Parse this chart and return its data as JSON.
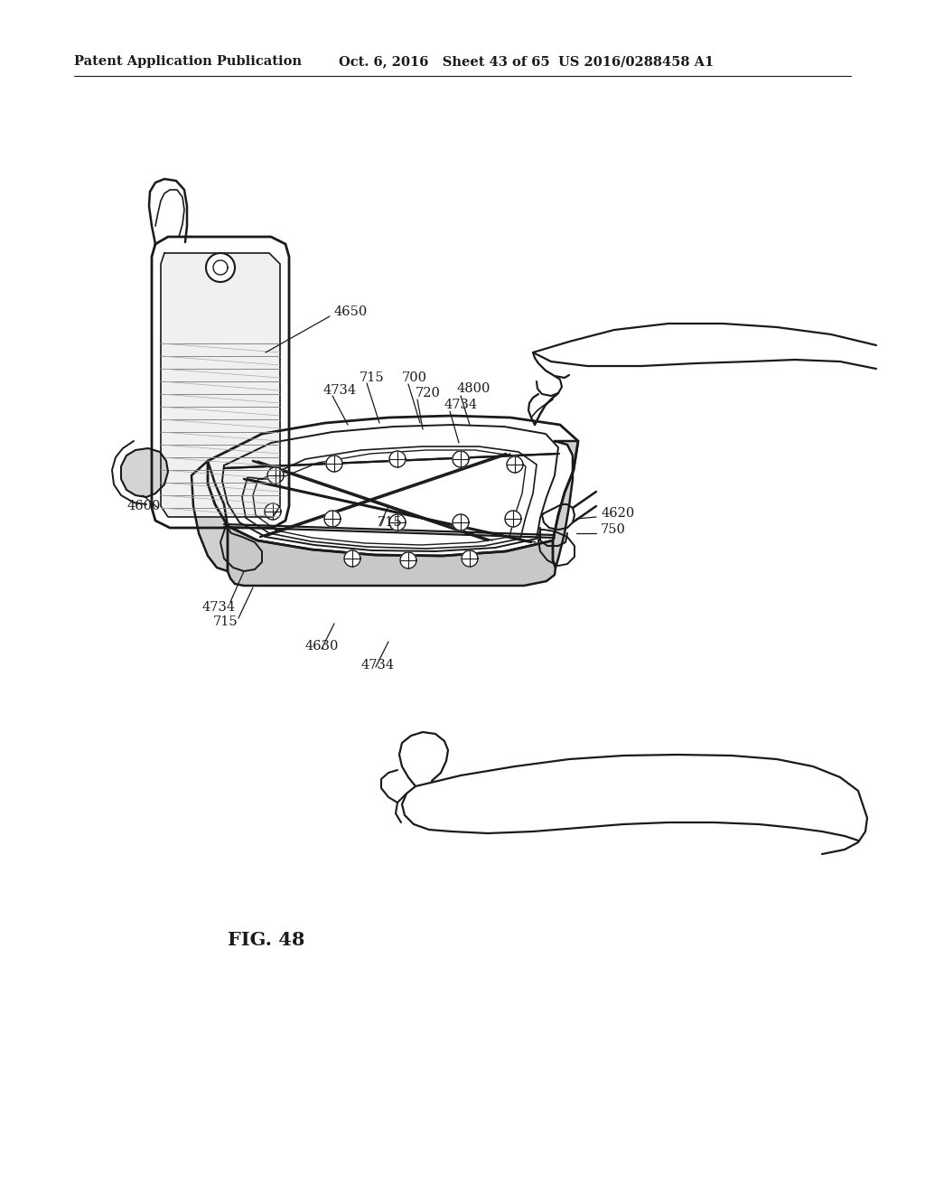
{
  "background_color": "#ffffff",
  "header_left": "Patent Application Publication",
  "header_center": "Oct. 6, 2016   Sheet 43 of 65",
  "header_right": "US 2016/0288458 A1",
  "figure_label": "FIG. 48",
  "line_color": "#1a1a1a",
  "line_width": 1.4,
  "font_size_labels": 10.5,
  "font_size_header": 10.5,
  "font_size_figure": 15
}
